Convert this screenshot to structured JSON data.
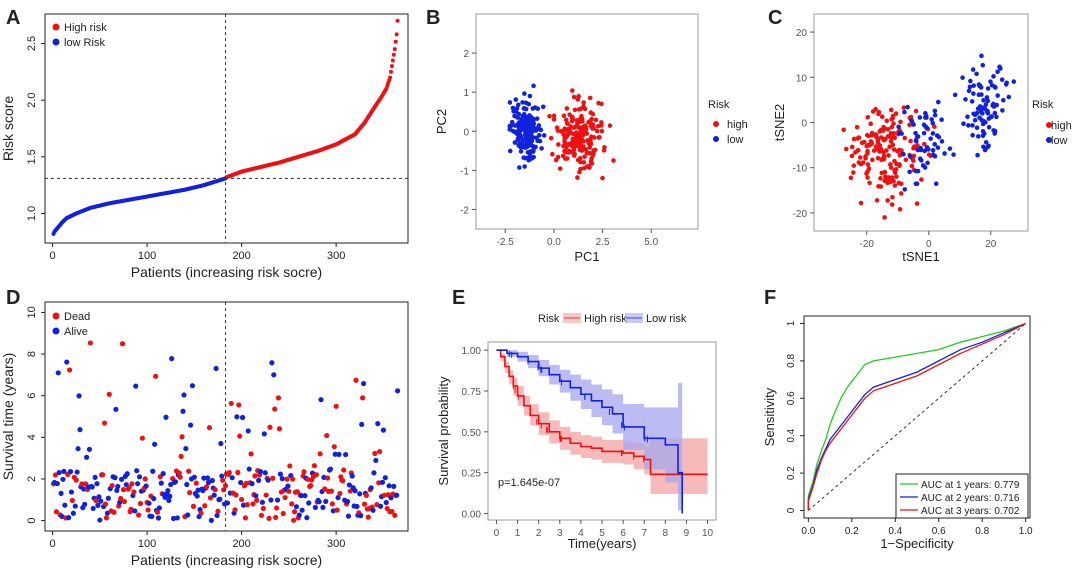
{
  "colors": {
    "high": "#ee1111",
    "low": "#1122dd",
    "green": "#22cc22",
    "band_high": "#f4a3a3",
    "band_low": "#a6a6ee"
  },
  "chart_data": [
    {
      "id": "A",
      "type": "scatter",
      "title": "",
      "xlabel": "Patients (increasing risk socre)",
      "ylabel": "Risk score",
      "xlim": [
        -8,
        376
      ],
      "ylim": [
        0.74,
        2.76
      ],
      "xticks": [
        0,
        100,
        200,
        300
      ],
      "yticks": [
        1.0,
        1.5,
        2.0,
        2.5
      ],
      "cutoff_x": 183,
      "cutoff_y": 1.31,
      "legend": {
        "position": "top-left",
        "items": [
          "High risk",
          "low Risk"
        ]
      },
      "curve_low": {
        "name": "low Risk",
        "points": [
          [
            1,
            0.82
          ],
          [
            2,
            0.84
          ],
          [
            4,
            0.86
          ],
          [
            7,
            0.89
          ],
          [
            10,
            0.92
          ],
          [
            15,
            0.96
          ],
          [
            25,
            1.0
          ],
          [
            40,
            1.05
          ],
          [
            60,
            1.09
          ],
          [
            80,
            1.12
          ],
          [
            100,
            1.15
          ],
          [
            120,
            1.18
          ],
          [
            140,
            1.21
          ],
          [
            160,
            1.25
          ],
          [
            183,
            1.31
          ]
        ]
      },
      "curve_high": {
        "name": "High risk",
        "points": [
          [
            184,
            1.32
          ],
          [
            200,
            1.37
          ],
          [
            220,
            1.41
          ],
          [
            240,
            1.45
          ],
          [
            260,
            1.5
          ],
          [
            280,
            1.55
          ],
          [
            300,
            1.61
          ],
          [
            320,
            1.7
          ],
          [
            330,
            1.8
          ],
          [
            340,
            1.93
          ],
          [
            348,
            2.03
          ],
          [
            353,
            2.1
          ],
          [
            357,
            2.2
          ],
          [
            360,
            2.35
          ],
          [
            362,
            2.45
          ],
          [
            364,
            2.58
          ],
          [
            365,
            2.7
          ]
        ]
      }
    },
    {
      "id": "B",
      "type": "scatter",
      "title": "",
      "xlabel": "PC1",
      "ylabel": "PC2",
      "xlim": [
        -4.0,
        7.4
      ],
      "ylim": [
        -2.5,
        3.0
      ],
      "xticks": [
        -2.5,
        0.0,
        2.5,
        5.0
      ],
      "xtick_labels": [
        "-2.5",
        "0.0",
        "2.5",
        "5.0"
      ],
      "yticks": [
        -2,
        -1,
        0,
        1,
        2
      ],
      "legend": {
        "title": "Risk",
        "items": [
          "high",
          "low"
        ]
      }
    },
    {
      "id": "C",
      "type": "scatter",
      "title": "",
      "xlabel": "tSNE1",
      "ylabel": "tSNE2",
      "xlim": [
        -37,
        32
      ],
      "ylim": [
        -24,
        24
      ],
      "xticks": [
        -20,
        0,
        20
      ],
      "yticks": [
        -20,
        -10,
        0,
        10,
        20
      ],
      "legend": {
        "title": "Risk",
        "items": [
          "high",
          "low"
        ]
      }
    },
    {
      "id": "D",
      "type": "scatter",
      "title": "",
      "xlabel": "Patients (increasing risk socre)",
      "ylabel": "Survival time (years)",
      "xlim": [
        -8,
        376
      ],
      "ylim": [
        -0.5,
        10.5
      ],
      "xticks": [
        0,
        100,
        200,
        300
      ],
      "yticks": [
        0,
        2,
        4,
        6,
        8,
        10
      ],
      "cutoff_x": 183,
      "legend": {
        "position": "top-left",
        "items": [
          "Dead",
          "Alive"
        ]
      }
    },
    {
      "id": "E",
      "type": "line",
      "title": "",
      "xlabel": "Time(years)",
      "ylabel": "Survival probability",
      "xlim": [
        -0.4,
        10.4
      ],
      "ylim": [
        -0.04,
        1.05
      ],
      "xticks": [
        0,
        1,
        2,
        3,
        4,
        5,
        6,
        7,
        8,
        9,
        10
      ],
      "yticks": [
        0.0,
        0.25,
        0.5,
        0.75,
        1.0
      ],
      "ytick_labels": [
        "0.00",
        "0.25",
        "0.50",
        "0.75",
        "1.00"
      ],
      "legend": {
        "title": "Risk",
        "items": [
          "High risk",
          "Low risk"
        ]
      },
      "pvalue": "p=1.645e-07",
      "series": [
        {
          "name": "High risk",
          "steps": [
            [
              0,
              1.0
            ],
            [
              0.2,
              0.96
            ],
            [
              0.4,
              0.9
            ],
            [
              0.6,
              0.84
            ],
            [
              0.8,
              0.78
            ],
            [
              1,
              0.72
            ],
            [
              1.3,
              0.66
            ],
            [
              1.6,
              0.6
            ],
            [
              2,
              0.55
            ],
            [
              2.5,
              0.5
            ],
            [
              3,
              0.46
            ],
            [
              3.5,
              0.43
            ],
            [
              4,
              0.41
            ],
            [
              4.5,
              0.4
            ],
            [
              5,
              0.38
            ],
            [
              6,
              0.37
            ],
            [
              6.5,
              0.35
            ],
            [
              7,
              0.33
            ],
            [
              7.3,
              0.24
            ],
            [
              10,
              0.24
            ]
          ],
          "upper": [
            1.0,
            0.98,
            0.93,
            0.88,
            0.83,
            0.78,
            0.72,
            0.67,
            0.62,
            0.57,
            0.53,
            0.5,
            0.48,
            0.47,
            0.45,
            0.44,
            0.43,
            0.41,
            0.46,
            0.46
          ],
          "lower": [
            1.0,
            0.93,
            0.86,
            0.79,
            0.72,
            0.66,
            0.6,
            0.54,
            0.48,
            0.43,
            0.39,
            0.36,
            0.34,
            0.33,
            0.31,
            0.3,
            0.27,
            0.24,
            0.12,
            0.12
          ]
        },
        {
          "name": "Low risk",
          "steps": [
            [
              0,
              1.0
            ],
            [
              0.5,
              0.98
            ],
            [
              1,
              0.96
            ],
            [
              1.5,
              0.93
            ],
            [
              2,
              0.89
            ],
            [
              2.5,
              0.85
            ],
            [
              3,
              0.81
            ],
            [
              3.5,
              0.77
            ],
            [
              4,
              0.73
            ],
            [
              4.5,
              0.69
            ],
            [
              5,
              0.65
            ],
            [
              5.5,
              0.61
            ],
            [
              6,
              0.53
            ],
            [
              7,
              0.46
            ],
            [
              8,
              0.42
            ],
            [
              8.6,
              0.25
            ],
            [
              8.8,
              0.0
            ]
          ],
          "upper": [
            1.0,
            1.0,
            0.99,
            0.97,
            0.94,
            0.91,
            0.88,
            0.85,
            0.82,
            0.79,
            0.76,
            0.73,
            0.67,
            0.65,
            0.65,
            0.8,
            0.8
          ],
          "lower": [
            1.0,
            0.96,
            0.93,
            0.89,
            0.84,
            0.79,
            0.74,
            0.69,
            0.64,
            0.59,
            0.54,
            0.49,
            0.39,
            0.27,
            0.19,
            0.02,
            0.0
          ]
        }
      ]
    },
    {
      "id": "F",
      "type": "line",
      "title": "",
      "xlabel": "1−Specificity",
      "ylabel": "Sensitivity",
      "xlim": [
        -0.02,
        1.02
      ],
      "ylim": [
        -0.04,
        1.04
      ],
      "xticks": [
        0.0,
        0.2,
        0.4,
        0.6,
        0.8,
        1.0
      ],
      "yticks": [
        0.0,
        0.2,
        0.4,
        0.6,
        0.8,
        1.0
      ],
      "xtick_labels": [
        "0.0",
        "0.2",
        "0.4",
        "0.6",
        "0.8",
        "1.0"
      ],
      "legend": {
        "position": "bottom-right",
        "items": [
          "AUC at 1 years: 0.779",
          "AUC at 2 years: 0.716",
          "AUC at 3 years: 0.702"
        ]
      },
      "series": [
        {
          "name": "AUC at 1 years: 0.779",
          "color": "green",
          "points": [
            [
              0,
              0
            ],
            [
              0,
              0.08
            ],
            [
              0.02,
              0.15
            ],
            [
              0.04,
              0.25
            ],
            [
              0.06,
              0.32
            ],
            [
              0.08,
              0.38
            ],
            [
              0.1,
              0.46
            ],
            [
              0.12,
              0.52
            ],
            [
              0.15,
              0.6
            ],
            [
              0.18,
              0.66
            ],
            [
              0.22,
              0.72
            ],
            [
              0.26,
              0.78
            ],
            [
              0.3,
              0.8
            ],
            [
              0.4,
              0.82
            ],
            [
              0.5,
              0.84
            ],
            [
              0.6,
              0.86
            ],
            [
              0.7,
              0.9
            ],
            [
              0.8,
              0.93
            ],
            [
              0.9,
              0.96
            ],
            [
              1,
              1
            ]
          ]
        },
        {
          "name": "AUC at 2 years: 0.716",
          "color": "low",
          "points": [
            [
              0,
              0
            ],
            [
              0,
              0.06
            ],
            [
              0.02,
              0.13
            ],
            [
              0.04,
              0.22
            ],
            [
              0.06,
              0.28
            ],
            [
              0.08,
              0.33
            ],
            [
              0.1,
              0.38
            ],
            [
              0.14,
              0.44
            ],
            [
              0.18,
              0.5
            ],
            [
              0.22,
              0.56
            ],
            [
              0.26,
              0.62
            ],
            [
              0.3,
              0.66
            ],
            [
              0.4,
              0.7
            ],
            [
              0.5,
              0.74
            ],
            [
              0.6,
              0.8
            ],
            [
              0.7,
              0.86
            ],
            [
              0.8,
              0.9
            ],
            [
              0.9,
              0.95
            ],
            [
              1,
              1
            ]
          ]
        },
        {
          "name": "AUC at 3 years: 0.702",
          "color": "high",
          "points": [
            [
              0,
              0
            ],
            [
              0,
              0.05
            ],
            [
              0.02,
              0.12
            ],
            [
              0.04,
              0.2
            ],
            [
              0.06,
              0.27
            ],
            [
              0.08,
              0.32
            ],
            [
              0.1,
              0.36
            ],
            [
              0.14,
              0.42
            ],
            [
              0.18,
              0.48
            ],
            [
              0.22,
              0.54
            ],
            [
              0.26,
              0.6
            ],
            [
              0.3,
              0.64
            ],
            [
              0.4,
              0.68
            ],
            [
              0.5,
              0.72
            ],
            [
              0.6,
              0.78
            ],
            [
              0.7,
              0.84
            ],
            [
              0.8,
              0.89
            ],
            [
              0.9,
              0.94
            ],
            [
              1,
              1
            ]
          ]
        }
      ]
    }
  ]
}
